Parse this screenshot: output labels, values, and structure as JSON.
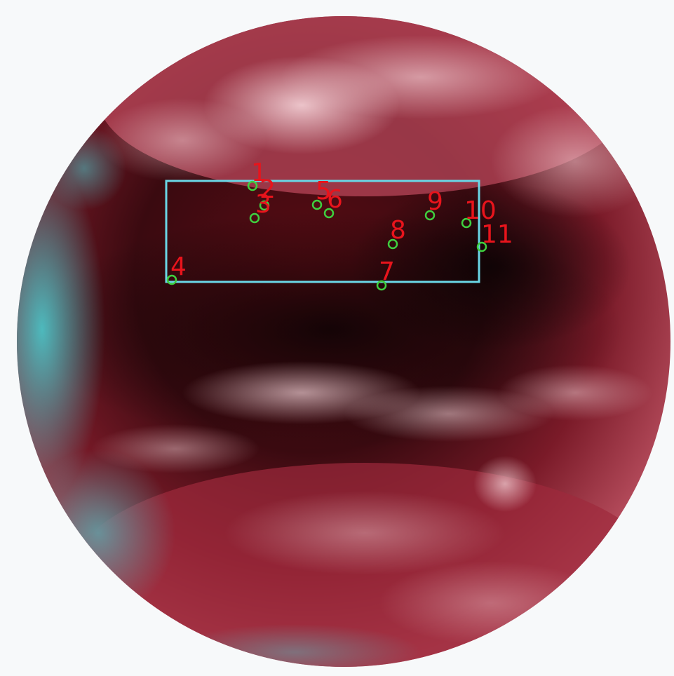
{
  "image": {
    "subject": "satellite full-disk earth view",
    "colors": {
      "background": "#f7f9fa",
      "disk_base": "#8a1e2c",
      "cloud": "#f2c6cc",
      "limb_cyan": "#46d2d4",
      "region_box": "#6ad6e6",
      "marker_circle": "#3fcf3f",
      "marker_label": "#e8141c"
    }
  },
  "region_box": {
    "label": ""
  },
  "markers": [
    {
      "id": "1",
      "label": "1"
    },
    {
      "id": "2",
      "label": "2"
    },
    {
      "id": "3",
      "label": "3"
    },
    {
      "id": "4",
      "label": "4"
    },
    {
      "id": "5",
      "label": "5"
    },
    {
      "id": "6",
      "label": "6"
    },
    {
      "id": "7",
      "label": "7"
    },
    {
      "id": "8",
      "label": "8"
    },
    {
      "id": "9",
      "label": "9"
    },
    {
      "id": "10",
      "label": "10"
    },
    {
      "id": "11",
      "label": "11"
    }
  ]
}
